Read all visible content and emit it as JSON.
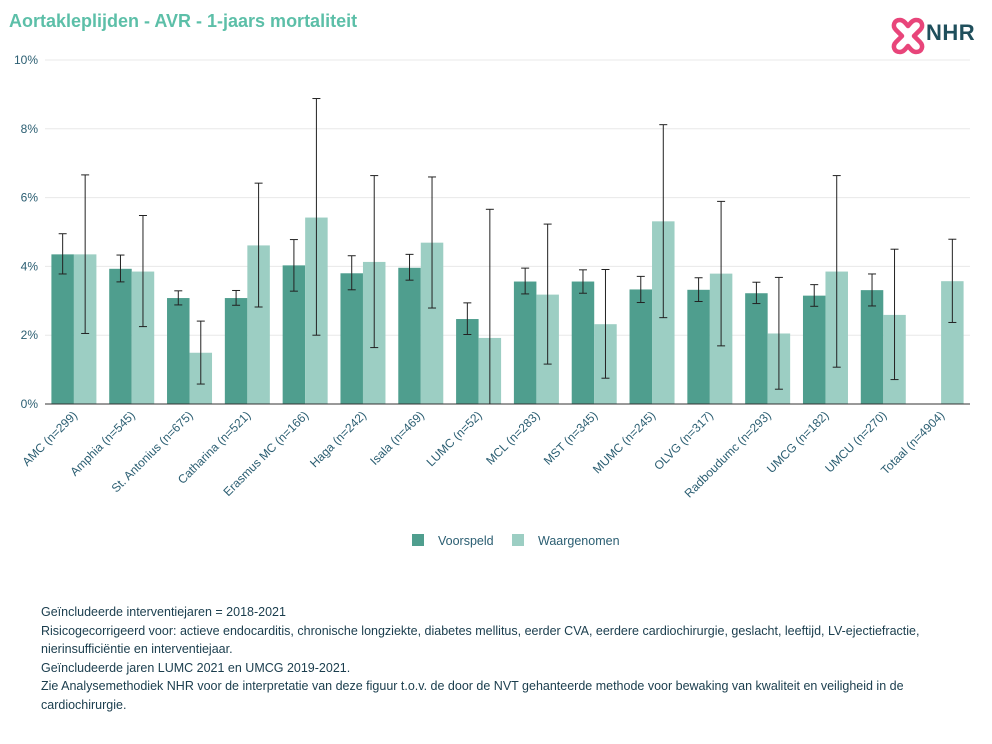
{
  "header": {
    "title": "Aortakleplijden - AVR - 1-jaars mortaliteit",
    "logo_text": "NHR"
  },
  "colors": {
    "title": "#5cbfa8",
    "voorspeld": "#4f9e8e",
    "waargenomen": "#9ccec3",
    "axis_text": "#2b5e72",
    "logo_pink": "#e8457a",
    "logo_text": "#1f4f5c"
  },
  "chart_data": {
    "type": "bar",
    "categories": [
      "AMC (n=299)",
      "Amphia (n=545)",
      "St. Antonius (n=675)",
      "Catharina (n=521)",
      "Erasmus MC (n=166)",
      "Haga (n=242)",
      "Isala (n=469)",
      "LUMC (n=52)",
      "MCL (n=283)",
      "MST (n=345)",
      "MUMC (n=245)",
      "OLVG (n=317)",
      "Radboudumc (n=293)",
      "UMCG (n=182)",
      "UMCU (n=270)",
      "Totaal (n=4904)"
    ],
    "series": [
      {
        "name": "Voorspeld",
        "values": [
          4.35,
          3.93,
          3.08,
          3.08,
          4.03,
          3.8,
          3.96,
          2.47,
          3.56,
          3.56,
          3.33,
          3.32,
          3.22,
          3.15,
          3.31,
          null
        ],
        "err_low": [
          3.78,
          3.55,
          2.88,
          2.87,
          3.28,
          3.32,
          3.6,
          2.02,
          3.2,
          3.22,
          2.95,
          2.98,
          2.92,
          2.84,
          2.85,
          null
        ],
        "err_high": [
          4.95,
          4.33,
          3.29,
          3.3,
          4.78,
          4.31,
          4.35,
          2.94,
          3.95,
          3.9,
          3.71,
          3.67,
          3.54,
          3.47,
          3.78,
          null
        ]
      },
      {
        "name": "Waargenomen",
        "values": [
          4.35,
          3.85,
          1.49,
          4.61,
          5.42,
          4.13,
          4.69,
          1.92,
          3.18,
          2.32,
          5.31,
          3.79,
          2.05,
          3.85,
          2.59,
          3.57
        ],
        "err_low": [
          2.05,
          2.25,
          0.58,
          2.82,
          2.0,
          1.64,
          2.79,
          0.0,
          1.16,
          0.75,
          2.51,
          1.69,
          0.43,
          1.07,
          0.71,
          2.37
        ],
        "err_high": [
          6.66,
          5.48,
          2.41,
          6.42,
          8.88,
          6.64,
          6.6,
          5.66,
          5.23,
          3.91,
          8.12,
          5.89,
          3.68,
          6.64,
          4.5,
          4.79
        ]
      }
    ],
    "xlabel": "",
    "ylabel": "",
    "ylim": [
      0,
      10
    ],
    "yticks": [
      "0%",
      "2%",
      "4%",
      "6%",
      "8%",
      "10%"
    ],
    "grid": true,
    "legend_position": "bottom-center",
    "legend": [
      "Voorspeld",
      "Waargenomen"
    ]
  },
  "notes": [
    "Geïncludeerde interventiejaren = 2018-2021",
    "Risicogecorrigeerd voor: actieve endocarditis, chronische longziekte, diabetes mellitus, eerder CVA, eerdere cardiochirurgie, geslacht, leeftijd, LV-ejectiefractie, nierinsufficiëntie en interventiejaar.",
    "Geïncludeerde jaren LUMC 2021 en UMCG 2019-2021.",
    "Zie Analysemethodiek NHR voor de interpretatie van deze figuur t.o.v. de door de NVT gehanteerde methode voor bewaking van kwaliteit en veiligheid in de cardiochirurgie."
  ]
}
